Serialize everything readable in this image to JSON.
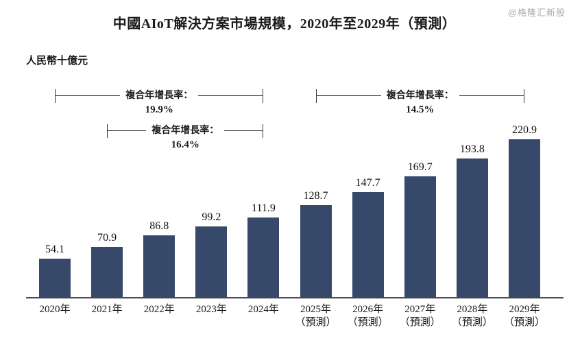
{
  "title": "中國AIoT解決方案市場規模，2020年至2029年（預測）",
  "unit_label": "人民幣十億元",
  "watermark": "@格隆汇新股",
  "colors": {
    "bar": "#36496B",
    "axis": "#4D4D4D",
    "bracket_line": "#333333",
    "watermark": "#A9A9A9"
  },
  "chart_data": {
    "type": "bar",
    "title": "中國AIoT解決方案市場規模，2020年至2029年（預測）",
    "ylabel": "人民幣十億元",
    "xlabel": "",
    "categories": [
      "2020年",
      "2021年",
      "2022年",
      "2023年",
      "2024年",
      "2025年",
      "2026年",
      "2027年",
      "2028年",
      "2029年"
    ],
    "category_sublabels": [
      "",
      "",
      "",
      "",
      "",
      "（預測）",
      "（預測）",
      "（預測）",
      "（預測）",
      "（預測）"
    ],
    "values": [
      54.1,
      70.9,
      86.8,
      99.2,
      111.9,
      128.7,
      147.7,
      169.7,
      193.8,
      220.9
    ],
    "value_labels": [
      "54.1",
      "70.9",
      "86.8",
      "99.2",
      "111.9",
      "128.7",
      "147.7",
      "169.7",
      "193.8",
      "220.9"
    ],
    "ylim": [
      0,
      230
    ],
    "grid": false,
    "legend": null,
    "bar_color": "#36496B",
    "cagr_brackets": [
      {
        "label": "複合年增長率：",
        "value": "19.9%",
        "from_index": 0,
        "to_index": 4,
        "row": 0
      },
      {
        "label": "複合年增長率：",
        "value": "16.4%",
        "from_index": 1,
        "to_index": 4,
        "row": 1
      },
      {
        "label": "複合年增長率：",
        "value": "14.5%",
        "from_index": 5,
        "to_index": 9,
        "row": 0
      }
    ]
  }
}
